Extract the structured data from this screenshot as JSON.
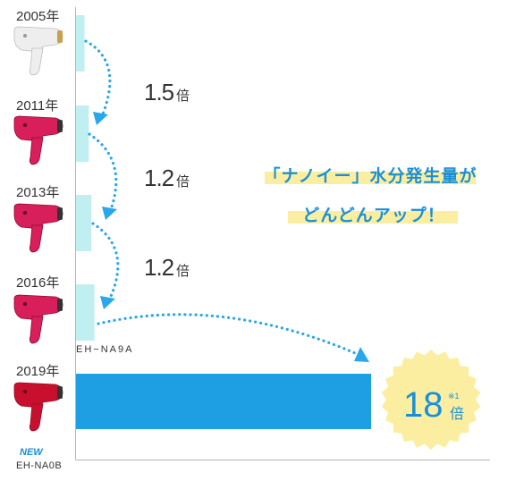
{
  "chart_data": {
    "type": "bar",
    "orientation": "horizontal",
    "title": "",
    "xlabel": "",
    "ylabel": "",
    "categories": [
      "2005年",
      "2011年",
      "2013年",
      "2016年",
      "2019年"
    ],
    "values": [
      1,
      1.5,
      1.8,
      2.16,
      18
    ],
    "multipliers": [
      {
        "from": "2005年",
        "to": "2011年",
        "num": "1.5",
        "unit": "倍"
      },
      {
        "from": "2011年",
        "to": "2013年",
        "num": "1.2",
        "unit": "倍"
      },
      {
        "from": "2013年",
        "to": "2016年",
        "num": "1.2",
        "unit": "倍"
      }
    ],
    "bar_colors": [
      "#bfeff0",
      "#bfeff0",
      "#bfeff0",
      "#bfeff0",
      "#1e9fe3"
    ],
    "grid": false,
    "legend": "none"
  },
  "models": {
    "model_2016": "EH−NA9A",
    "model_2019_tag": "NEW",
    "model_2019": "EH-NA0B"
  },
  "callout": {
    "line1": "「ナノイー」水分発生量が",
    "line2": "どんどんアップ！"
  },
  "badge": {
    "value": "18",
    "unit": "倍",
    "note": "※1",
    "color": "#fbeea0"
  },
  "colors": {
    "accent": "#1a8fd8",
    "arrow": "#2aa7e8",
    "dryer_white": "#eeeeee",
    "dryer_pink": "#d81e5b",
    "dryer_red": "#c8102e"
  },
  "icons": [
    "hair-dryer-white-icon",
    "hair-dryer-pink-icon",
    "hair-dryer-red-icon"
  ]
}
